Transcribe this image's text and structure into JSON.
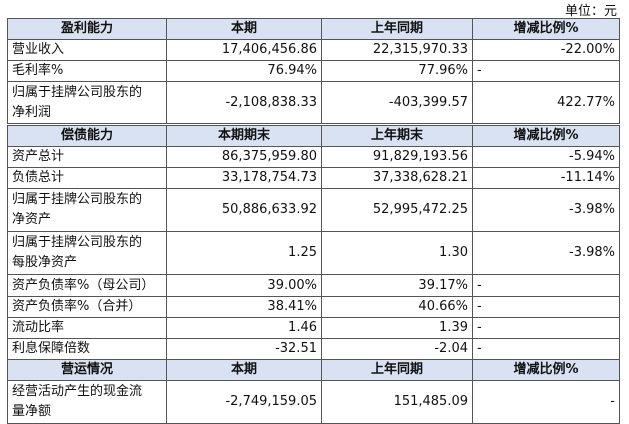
{
  "unit": "单位：元",
  "tables": [
    {
      "sections": [
        {
          "header": [
            "盈利能力",
            "本期",
            "上年同期",
            "增减比例%"
          ],
          "rows": [
            [
              "营业收入",
              "17,406,456.86",
              "22,315,970.33",
              "-22.00%"
            ],
            [
              "毛利率%",
              "76.94%",
              "77.96%",
              "-"
            ],
            [
              "归属于挂牌公司股东的净利润",
              "-2,108,838.33",
              "-403,399.57",
              "422.77%"
            ]
          ]
        }
      ]
    },
    {
      "sections": [
        {
          "header": [
            "偿债能力",
            "本期期末",
            "上年期末",
            "增减比例%"
          ],
          "rows": [
            [
              "资产总计",
              "86,375,959.80",
              "91,829,193.56",
              "-5.94%"
            ],
            [
              "负债总计",
              "33,178,754.73",
              "37,338,628.21",
              "-11.14%"
            ],
            [
              "归属于挂牌公司股东的净资产",
              "50,886,633.92",
              "52,995,472.25",
              "-3.98%"
            ],
            [
              "归属于挂牌公司股东的每股净资产",
              "1.25",
              "1.30",
              "-3.98%"
            ],
            [
              "资产负债率%（母公司）",
              "39.00%",
              "39.17%",
              "-"
            ],
            [
              "资产负债率%（合并）",
              "38.41%",
              "40.66%",
              "-"
            ],
            [
              "流动比率",
              "1.46",
              "1.39",
              "-"
            ],
            [
              "利息保障倍数",
              "-32.51",
              "-2.04",
              "-"
            ]
          ]
        },
        {
          "header": [
            "营运情况",
            "本期",
            "上年同期",
            "增减比例%"
          ],
          "rows": [
            [
              "经营活动产生的现金流量净额",
              "-2,749,159.05",
              "151,485.09",
              "-"
            ]
          ]
        }
      ]
    }
  ]
}
